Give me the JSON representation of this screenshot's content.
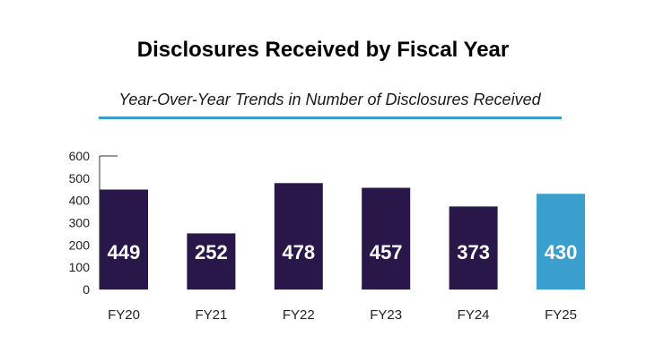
{
  "chart_data": {
    "type": "bar",
    "title": "Disclosures Received by Fiscal Year",
    "subtitle": "Year-Over-Year Trends in Number of Disclosures Received",
    "categories": [
      "FY20",
      "FY21",
      "FY22",
      "FY23",
      "FY24",
      "FY25"
    ],
    "values": [
      449,
      252,
      478,
      457,
      373,
      430
    ],
    "ylim": [
      0,
      600
    ],
    "yticks": [
      0,
      100,
      200,
      300,
      400,
      500,
      600
    ],
    "xlabel": "",
    "ylabel": "",
    "grid": false,
    "data_labels": true,
    "colors": {
      "bar": "#29174a",
      "highlight_bar": "#3a9fcc",
      "highlight_category": "FY25",
      "rule": "#3a9fcc",
      "label_text": "#ffffff",
      "axis_text": "#222222"
    }
  }
}
